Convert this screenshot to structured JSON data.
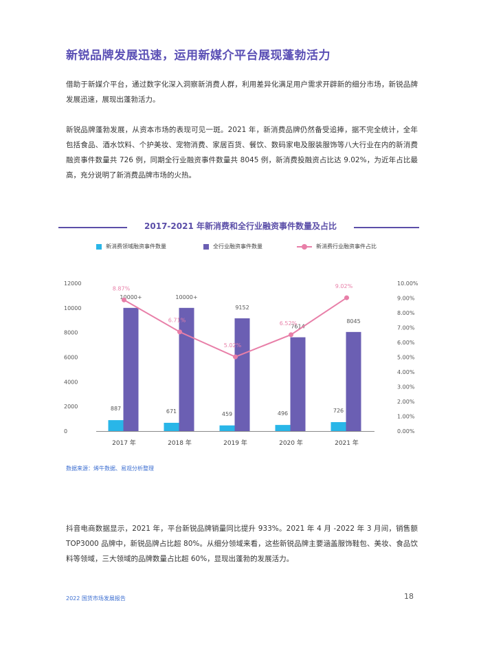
{
  "section": {
    "title": "新锐品牌发展迅速，运用新媒介平台展现蓬勃活力",
    "paragraph1": "借助于新媒介平台，通过数字化深入洞察新消费人群，利用差异化满足用户需求开辟新的细分市场，新锐品牌发展迅速，展现出蓬勃活力。",
    "paragraph2": "新锐品牌蓬勃发展，从资本市场的表现可见一斑。2021 年，新消费品牌仍然备受追捧，据不完全统计，全年包括食品、酒水饮料、个护美妆、宠物消费、家居百货、餐饮、数码家电及服装服饰等八大行业在内的新消费融资事件数量共 726 例，同期全行业融资事件数量共 8045 例，新消费投融资占比达 9.02%，为近年占比最高，充分说明了新消费品牌市场的火热。",
    "paragraph3": "抖音电商数据显示，2021 年，平台新锐品牌销量同比提升 933%。2021 年 4 月 -2022 年 3 月间，销售额 TOP3000 品牌中，新锐品牌占比超 80%。从细分领域来看，这些新锐品牌主要涵盖服饰鞋包、美妆、食品饮料等领域，三大领域的品牌数量占比超 60%，显现出蓬勃的发展活力。"
  },
  "chart_data": {
    "type": "bar",
    "title": "2017-2021 年新消费和全行业融资事件数量及占比",
    "categories": [
      "2017 年",
      "2018 年",
      "2019 年",
      "2020 年",
      "2021 年"
    ],
    "series": [
      {
        "name": "新消费领域融资事件数量",
        "kind": "bar",
        "axis": "left",
        "color": "#29b6e8",
        "values": [
          887,
          671,
          459,
          496,
          726
        ],
        "labels": [
          "887",
          "671",
          "459",
          "496",
          "726"
        ]
      },
      {
        "name": "全行业融资事件数量",
        "kind": "bar",
        "axis": "left",
        "color": "#6b5fb3",
        "values": [
          10000,
          10000,
          9152,
          7614,
          8045
        ],
        "labels": [
          "10000+",
          "10000+",
          "9152",
          "7614",
          "8045"
        ]
      },
      {
        "name": "新消费行业融资事件占比",
        "kind": "line",
        "axis": "right",
        "color": "#e87fa8",
        "values": [
          8.87,
          6.71,
          5.02,
          6.52,
          9.02
        ],
        "labels": [
          "8.87%",
          "6.71%",
          "5.02%",
          "6.52%",
          "9.02%"
        ]
      }
    ],
    "y_left": {
      "ticks": [
        "0",
        "2000",
        "4000",
        "6000",
        "8000",
        "10000",
        "12000"
      ],
      "min": 0,
      "max": 12000
    },
    "y_right": {
      "ticks": [
        "0.00%",
        "1.00%",
        "2.00%",
        "3.00%",
        "4.00%",
        "5.00%",
        "6.00%",
        "7.00%",
        "8.00%",
        "9.00%",
        "10.00%"
      ],
      "min": 0,
      "max": 10
    },
    "legend_position": "top",
    "grid": false
  },
  "source_note": "数据来源：烯牛数据、易观分析整理",
  "footer": {
    "report_name": "2022 国货市场发展报告",
    "page_number": "18"
  }
}
